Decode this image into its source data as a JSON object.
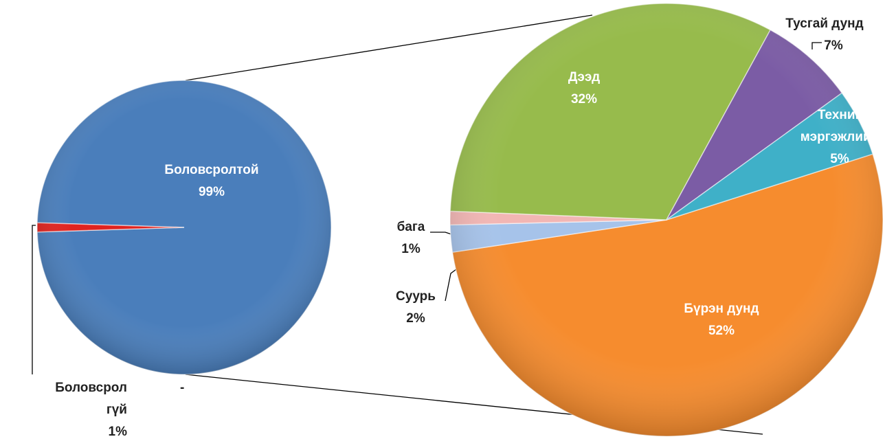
{
  "chart_data": [
    {
      "type": "pie",
      "categories": [
        "Боловсролтой",
        "Боловсрол гүй"
      ],
      "values": [
        99,
        1
      ],
      "value_labels": [
        "99%",
        "1%"
      ],
      "colors": [
        "#4a7ebb",
        "#e0231f"
      ],
      "annotation": "-"
    },
    {
      "type": "pie",
      "categories": [
        "Бүрэн дунд",
        "Суурь",
        "бага",
        "Дээд",
        "Тусгай дунд",
        "Техник мэргэжлийн"
      ],
      "values": [
        52,
        2,
        1,
        32,
        7,
        5
      ],
      "value_labels": [
        "52%",
        "2%",
        "1%",
        "32%",
        "7%",
        "5%"
      ],
      "colors": [
        "#f68c2e",
        "#a6c3ea",
        "#f2b6b4",
        "#97bb4c",
        "#7b5ca5",
        "#3fb0c8"
      ]
    }
  ]
}
